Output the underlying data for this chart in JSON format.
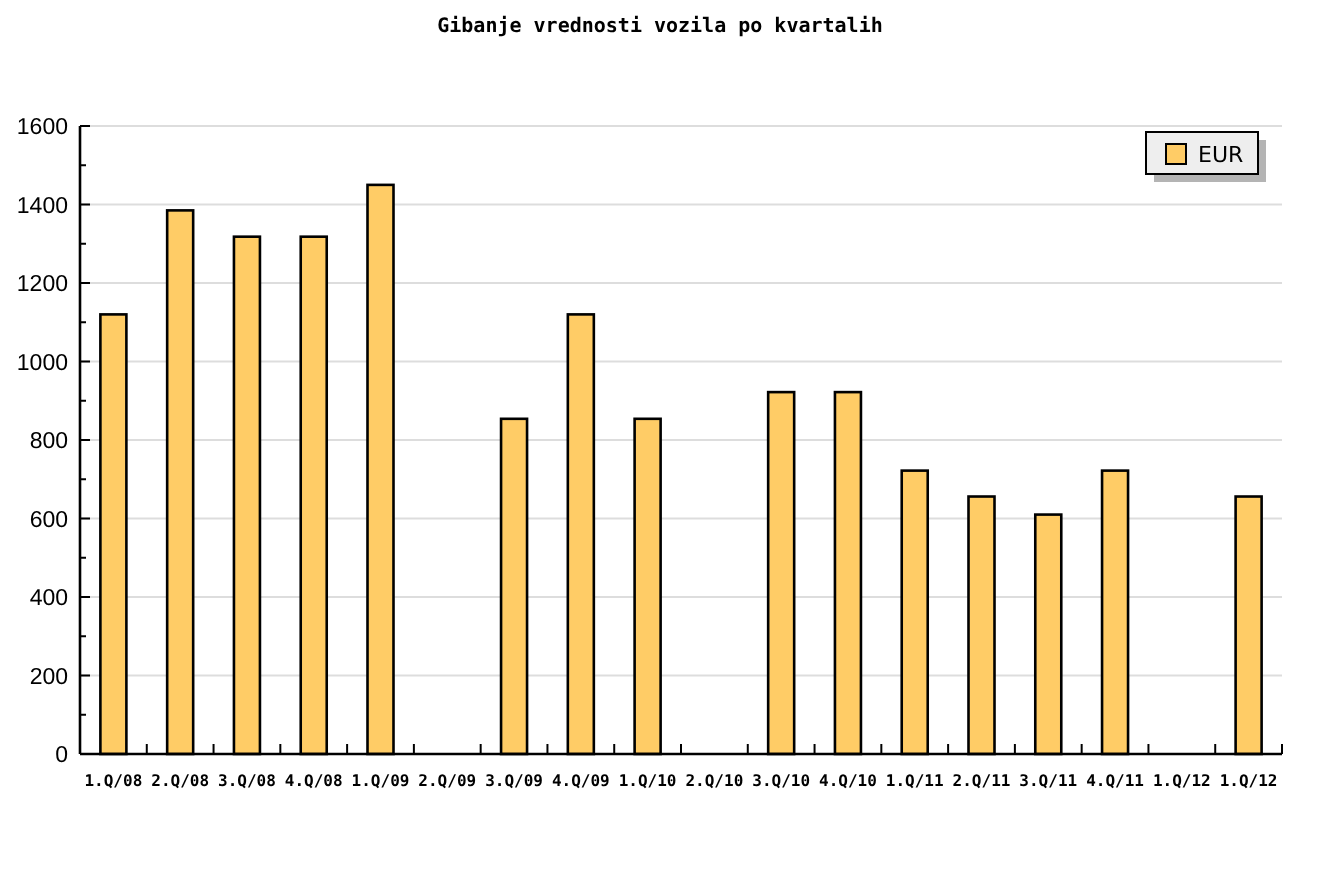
{
  "chart_data": {
    "type": "bar",
    "title": "Gibanje vrednosti vozila po kvartalih",
    "categories": [
      "1.Q/08",
      "2.Q/08",
      "3.Q/08",
      "4.Q/08",
      "1.Q/09",
      "2.Q/09",
      "3.Q/09",
      "4.Q/09",
      "1.Q/10",
      "2.Q/10",
      "3.Q/10",
      "4.Q/10",
      "1.Q/11",
      "2.Q/11",
      "3.Q/11",
      "4.Q/11",
      "1.Q/12",
      "1.Q/12"
    ],
    "series": [
      {
        "name": "EUR",
        "color": "#ffcc66",
        "values": [
          1120,
          1385,
          1318,
          1318,
          1450,
          null,
          854,
          1120,
          854,
          null,
          922,
          922,
          722,
          656,
          610,
          722,
          null,
          656
        ]
      }
    ],
    "ylim": [
      0,
      1600
    ],
    "yticks": [
      0,
      {
        "value": 100,
        "label": null
      },
      200,
      {
        "value": 300,
        "label": null
      },
      400,
      {
        "value": 500,
        "label": null
      },
      600,
      {
        "value": 700,
        "label": null
      },
      800,
      {
        "value": 900,
        "label": null
      },
      1000,
      {
        "value": 1100,
        "label": null
      },
      1200,
      {
        "value": 1300,
        "label": null
      },
      1400,
      {
        "value": 1500,
        "label": null
      },
      1600
    ],
    "grid": "y",
    "legend": "top right"
  }
}
